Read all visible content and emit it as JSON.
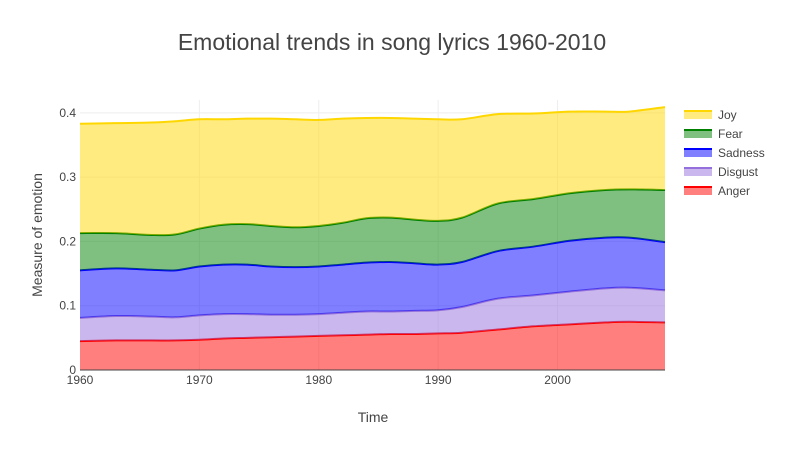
{
  "chart_data": {
    "type": "area",
    "stacked": true,
    "title": "Emotional trends in song lyrics 1960-2010",
    "xlabel": "Time",
    "ylabel": "Measure of emotion",
    "xlim": [
      1960,
      2009
    ],
    "ylim": [
      0,
      0.42
    ],
    "x_ticks": [
      1960,
      1970,
      1980,
      1990,
      2000
    ],
    "y_ticks": [
      0,
      0.1,
      0.2,
      0.3,
      0.4
    ],
    "y_tick_labels": [
      "0",
      "0.1",
      "0.2",
      "0.3",
      "0.4"
    ],
    "grid": true,
    "legend_position": "top-right",
    "x": [
      1960,
      1963,
      1966,
      1968,
      1970,
      1972,
      1974,
      1976,
      1978,
      1980,
      1982,
      1984,
      1986,
      1988,
      1990,
      1992,
      1995,
      1998,
      2001,
      2004,
      2006,
      2009
    ],
    "series": [
      {
        "name": "Anger",
        "color": "#ff0000",
        "fill": "rgba(255,0,0,0.5)",
        "values": [
          0.045,
          0.046,
          0.046,
          0.046,
          0.047,
          0.049,
          0.05,
          0.051,
          0.052,
          0.053,
          0.054,
          0.055,
          0.056,
          0.056,
          0.057,
          0.058,
          0.063,
          0.068,
          0.071,
          0.074,
          0.075,
          0.074
        ]
      },
      {
        "name": "Disgust",
        "color": "#9370db",
        "fill": "rgba(147,112,219,0.5)",
        "values": [
          0.036,
          0.038,
          0.037,
          0.036,
          0.038,
          0.038,
          0.037,
          0.035,
          0.034,
          0.034,
          0.035,
          0.036,
          0.035,
          0.036,
          0.036,
          0.04,
          0.048,
          0.048,
          0.051,
          0.053,
          0.053,
          0.05
        ]
      },
      {
        "name": "Sadness",
        "color": "#0000ff",
        "fill": "rgba(0,0,255,0.5)",
        "values": [
          0.074,
          0.074,
          0.073,
          0.073,
          0.076,
          0.077,
          0.077,
          0.075,
          0.074,
          0.074,
          0.075,
          0.076,
          0.077,
          0.074,
          0.071,
          0.07,
          0.074,
          0.076,
          0.079,
          0.079,
          0.078,
          0.075
        ]
      },
      {
        "name": "Fear",
        "color": "#008000",
        "fill": "rgba(0,128,0,0.5)",
        "values": [
          0.058,
          0.055,
          0.054,
          0.056,
          0.059,
          0.062,
          0.063,
          0.063,
          0.062,
          0.063,
          0.065,
          0.069,
          0.069,
          0.068,
          0.068,
          0.069,
          0.074,
          0.074,
          0.074,
          0.074,
          0.075,
          0.081
        ]
      },
      {
        "name": "Joy",
        "color": "#ffd700",
        "fill": "rgba(255,215,0,0.5)",
        "values": [
          0.17,
          0.171,
          0.175,
          0.176,
          0.17,
          0.164,
          0.164,
          0.167,
          0.168,
          0.165,
          0.162,
          0.156,
          0.155,
          0.157,
          0.158,
          0.153,
          0.139,
          0.133,
          0.127,
          0.122,
          0.121,
          0.129
        ]
      }
    ]
  }
}
